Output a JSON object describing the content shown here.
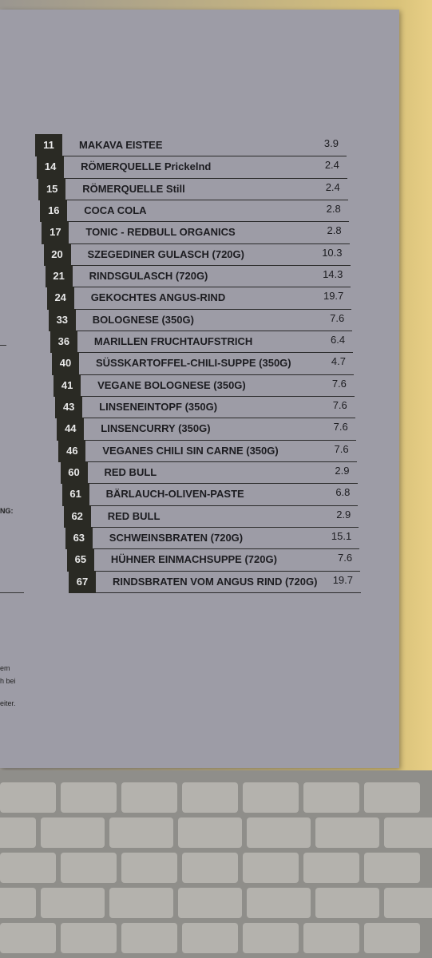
{
  "menu": {
    "items": [
      {
        "number": "11",
        "name": "MAKAVA EISTEE",
        "price": "3.9"
      },
      {
        "number": "14",
        "name": "RÖMERQUELLE Prickelnd",
        "price": "2.4"
      },
      {
        "number": "15",
        "name": "RÖMERQUELLE Still",
        "price": "2.4"
      },
      {
        "number": "16",
        "name": "COCA COLA",
        "price": "2.8"
      },
      {
        "number": "17",
        "name": "TONIC - REDBULL ORGANICS",
        "price": "2.8"
      },
      {
        "number": "20",
        "name": "SZEGEDINER GULASCH (720G)",
        "price": "10.3"
      },
      {
        "number": "21",
        "name": "RINDSGULASCH (720G)",
        "price": "14.3"
      },
      {
        "number": "24",
        "name": "GEKOCHTES ANGUS-RIND",
        "price": "19.7"
      },
      {
        "number": "33",
        "name": "BOLOGNESE (350G)",
        "price": "7.6"
      },
      {
        "number": "36",
        "name": "MARILLEN FRUCHTAUFSTRICH",
        "price": "6.4"
      },
      {
        "number": "40",
        "name": "SÜSSKARTOFFEL-CHILI-SUPPE (350G)",
        "price": "4.7"
      },
      {
        "number": "41",
        "name": "VEGANE BOLOGNESE (350G)",
        "price": "7.6"
      },
      {
        "number": "43",
        "name": "LINSENEINTOPF (350G)",
        "price": "7.6"
      },
      {
        "number": "44",
        "name": "LINSENCURRY (350G)",
        "price": "7.6"
      },
      {
        "number": "46",
        "name": "VEGANES CHILI SIN CARNE (350G)",
        "price": "7.6"
      },
      {
        "number": "60",
        "name": "RED BULL",
        "price": "2.9"
      },
      {
        "number": "61",
        "name": "BÄRLAUCH-OLIVEN-PASTE",
        "price": "6.8"
      },
      {
        "number": "62",
        "name": "RED BULL",
        "price": "2.9"
      },
      {
        "number": "63",
        "name": "SCHWEINSBRATEN (720G)",
        "price": "15.1"
      },
      {
        "number": "65",
        "name": "HÜHNER EINMACHSUPPE (720G)",
        "price": "7.6"
      },
      {
        "number": "67",
        "name": "RINDSBRATEN VOM ANGUS RIND (720G)",
        "price": "19.7"
      }
    ]
  },
  "fragments": [
    "NG:",
    "em",
    "h bei",
    "eiter."
  ]
}
